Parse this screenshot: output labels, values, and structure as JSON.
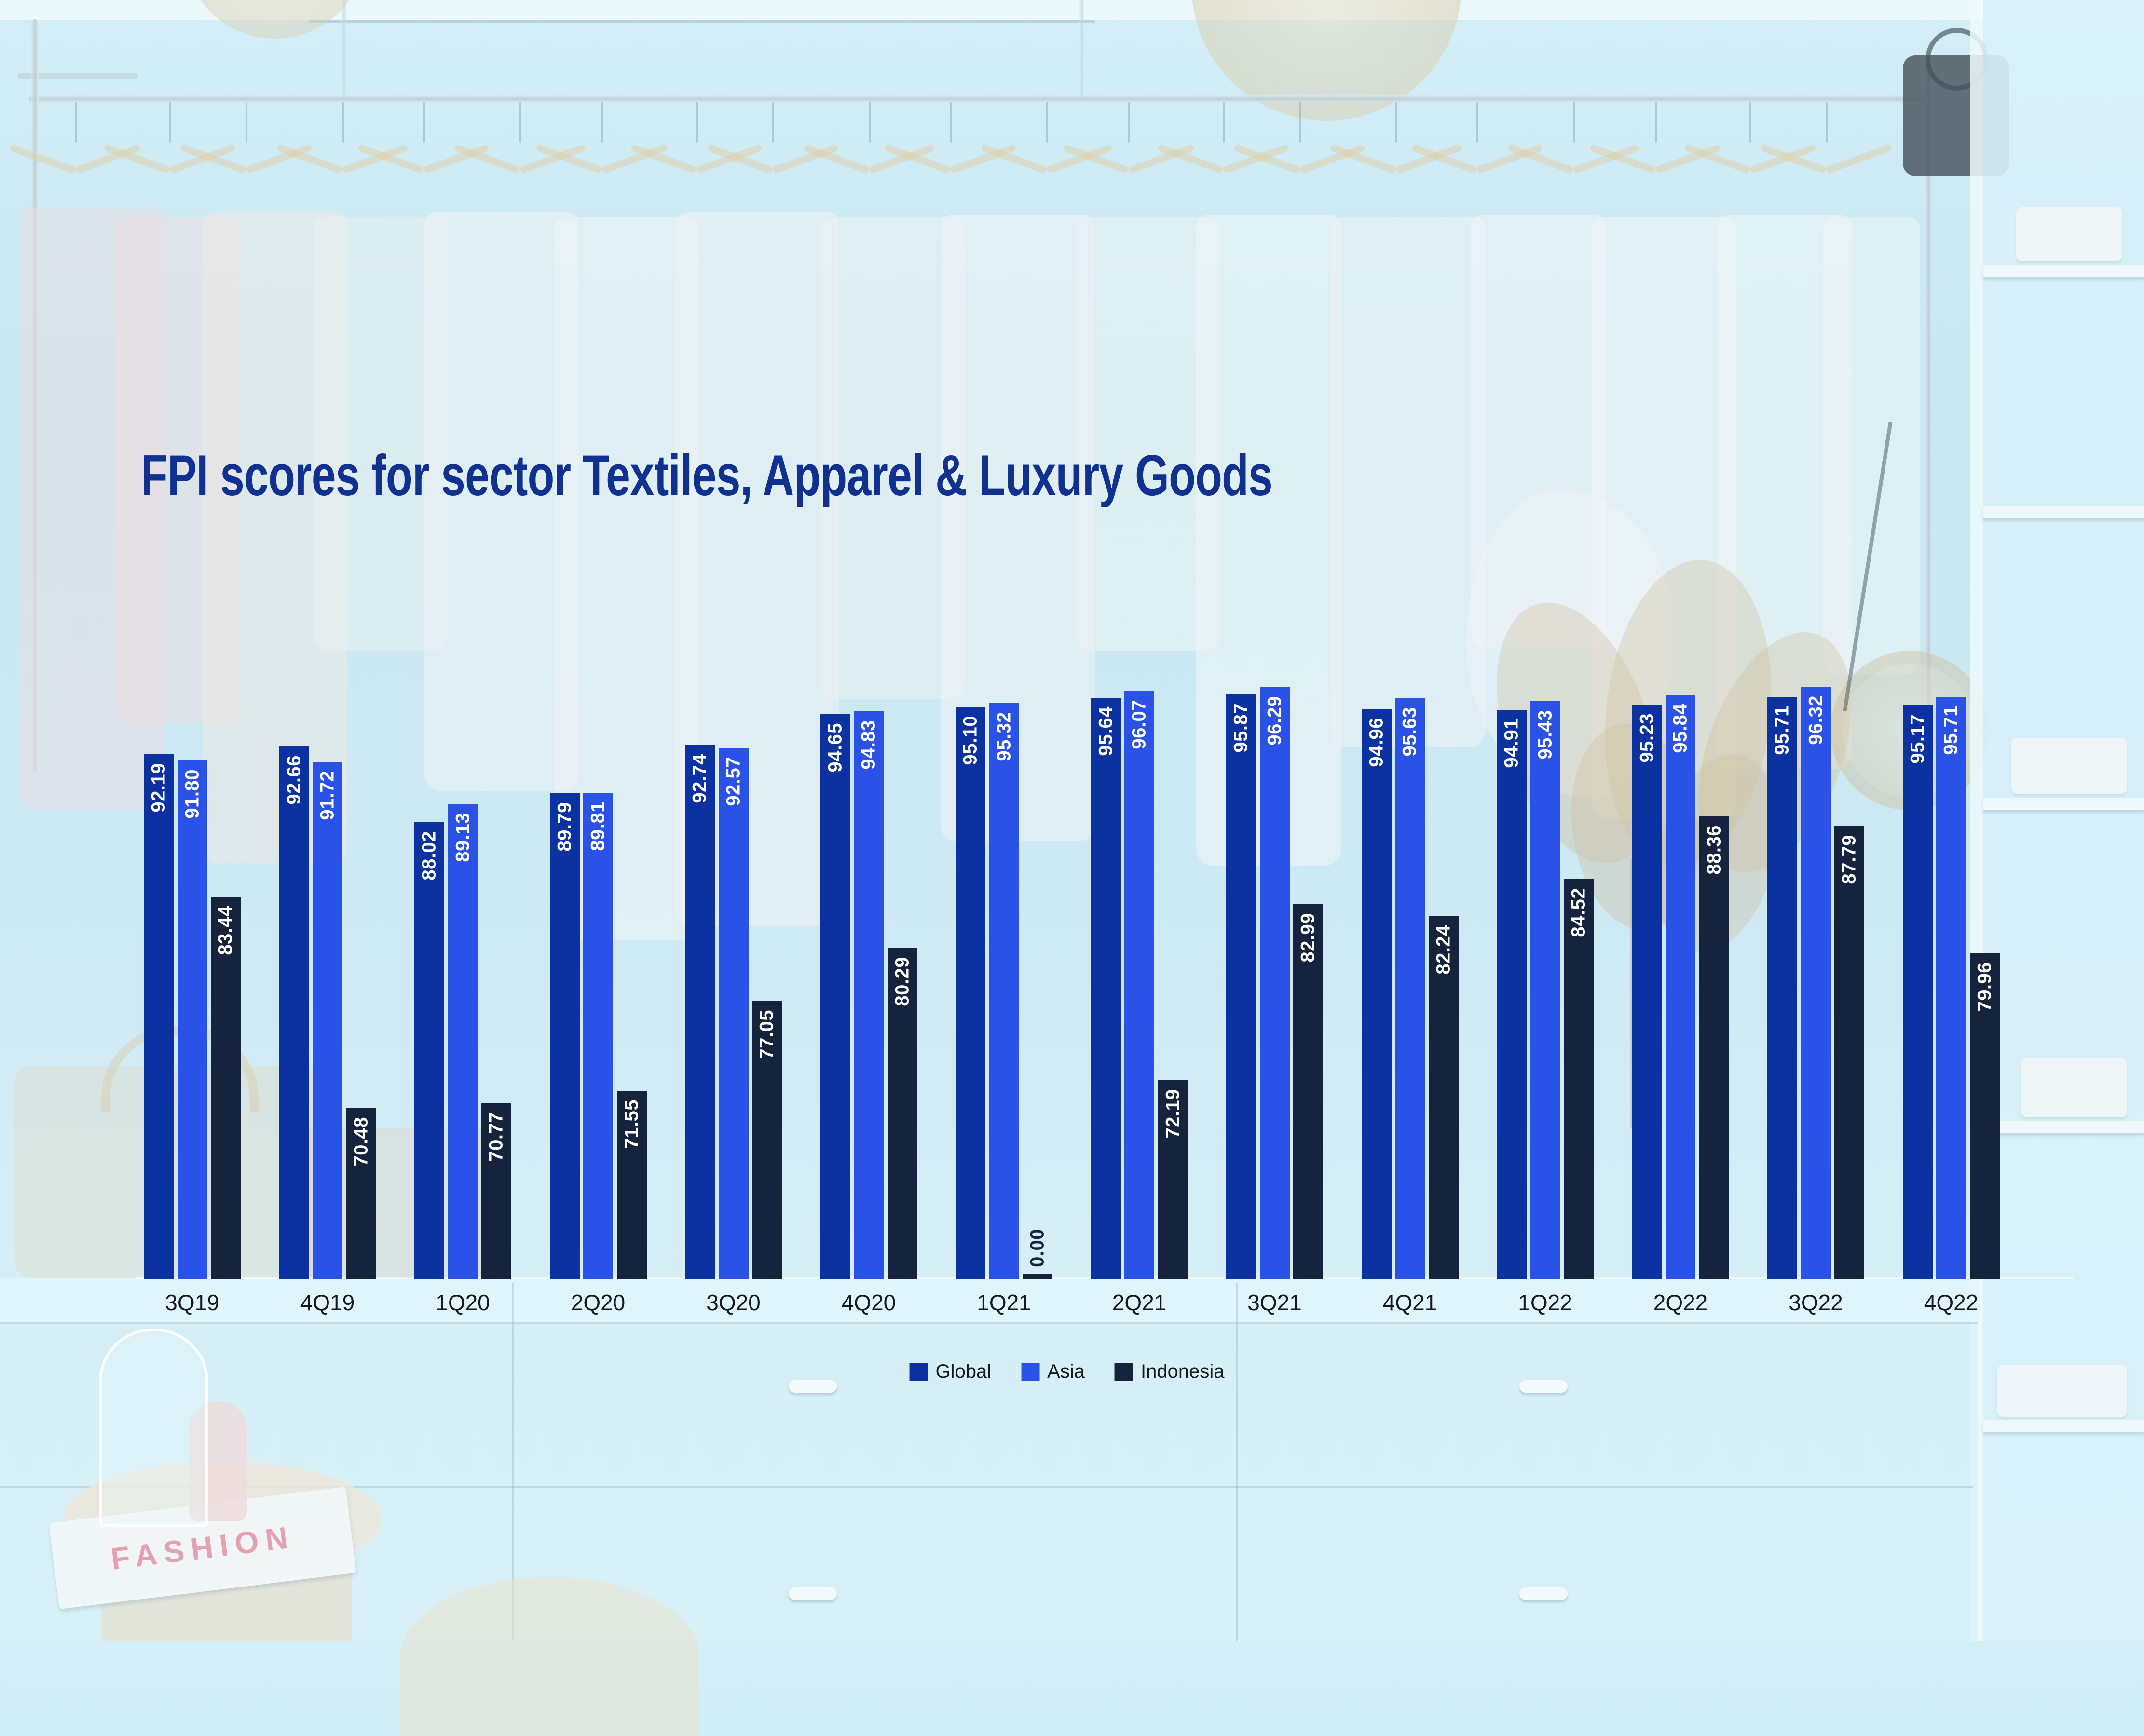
{
  "title": "FPI scores for sector Textiles, Apparel & Luxury Goods",
  "colors": {
    "background_tint": "#c9e8f2",
    "title": "#10318f",
    "global_series": "#0b32a0",
    "asia_series": "#2b52e6",
    "indonesia_series": "#16233d",
    "value_label": "#ffffff",
    "zero_value_label": "#16233d",
    "axis_label": "#15181c"
  },
  "chart_data": {
    "type": "bar",
    "title": "FPI scores for sector Textiles, Apparel & Luxury Goods",
    "categories": [
      "3Q19",
      "4Q19",
      "1Q20",
      "2Q20",
      "3Q20",
      "4Q20",
      "1Q21",
      "2Q21",
      "3Q21",
      "4Q21",
      "1Q22",
      "2Q22",
      "3Q22",
      "4Q22"
    ],
    "series": [
      {
        "name": "Global",
        "color": "#0b32a0",
        "values": [
          92.19,
          92.66,
          88.02,
          89.79,
          92.74,
          94.65,
          95.1,
          95.64,
          95.87,
          94.96,
          94.91,
          95.23,
          95.71,
          95.17
        ]
      },
      {
        "name": "Asia",
        "color": "#2b52e6",
        "values": [
          91.8,
          91.72,
          89.13,
          89.81,
          92.57,
          94.83,
          95.32,
          96.07,
          96.29,
          95.63,
          95.43,
          95.84,
          96.32,
          95.71
        ]
      },
      {
        "name": "Indonesia",
        "color": "#16233d",
        "values": [
          83.44,
          70.48,
          70.77,
          71.55,
          77.05,
          80.29,
          0.0,
          72.19,
          82.99,
          82.24,
          84.52,
          88.36,
          87.79,
          79.96
        ]
      }
    ],
    "ylim": [
      60,
      100
    ],
    "grid": false,
    "value_labels": "rotated -90deg, two decimals, white inside bar top; zero values dark above stub",
    "legend_position": "bottom-center",
    "xlabel": "",
    "ylabel": ""
  },
  "decor": {
    "magazine_text": "FASHION"
  }
}
